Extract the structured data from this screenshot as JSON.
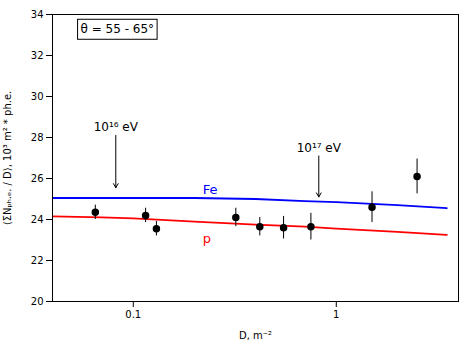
{
  "chart_data": {
    "type": "line",
    "xlabel": "D, m⁻²",
    "ylabel": "⟨ΣNₚₕ.ₑ. / D⟩, 10³ m² * ph.e.",
    "log": "x",
    "grid": false,
    "xlim": [
      0.04,
      4.0
    ],
    "xticks": [
      0.1,
      1
    ],
    "ylim": [
      20,
      34
    ],
    "yticks": [
      20,
      22,
      24,
      26,
      28,
      30,
      32,
      34
    ],
    "series": [
      {
        "name": "Fe",
        "color": "#0000ff",
        "type": "line",
        "x": [
          0.04,
          0.07,
          0.1,
          0.2,
          0.4,
          0.7,
          1.0,
          2.0,
          3.5
        ],
        "values": [
          25.05,
          25.05,
          25.05,
          25.05,
          25.0,
          24.9,
          24.85,
          24.7,
          24.55
        ],
        "label_at": [
          0.22,
          25.45
        ]
      },
      {
        "name": "p",
        "color": "#ff0000",
        "type": "line",
        "x": [
          0.04,
          0.07,
          0.1,
          0.2,
          0.4,
          0.7,
          1.0,
          2.0,
          3.5
        ],
        "values": [
          24.15,
          24.1,
          24.05,
          23.9,
          23.75,
          23.65,
          23.55,
          23.4,
          23.25
        ],
        "label_at": [
          0.22,
          23.05
        ]
      },
      {
        "type": "scatter",
        "marker": "circle",
        "color": "#000000",
        "x": [
          0.065,
          0.115,
          0.13,
          0.32,
          0.42,
          0.55,
          0.75,
          1.5,
          2.5
        ],
        "values": [
          24.35,
          24.2,
          23.55,
          24.1,
          23.65,
          23.6,
          23.65,
          24.6,
          26.1
        ],
        "yerr": [
          0.35,
          0.35,
          0.35,
          0.45,
          0.45,
          0.55,
          0.65,
          0.75,
          0.85
        ]
      }
    ],
    "annotations": [
      {
        "text": "10¹⁶ eV",
        "x": 0.082,
        "y": 25.55,
        "y_from": 28.1
      },
      {
        "text": "10¹⁷ eV",
        "x": 0.82,
        "y": 25.1,
        "y_from": 27.1
      }
    ],
    "note": {
      "text": "θ = 55 - 65°",
      "x": 0.055,
      "y": 33.5
    }
  }
}
